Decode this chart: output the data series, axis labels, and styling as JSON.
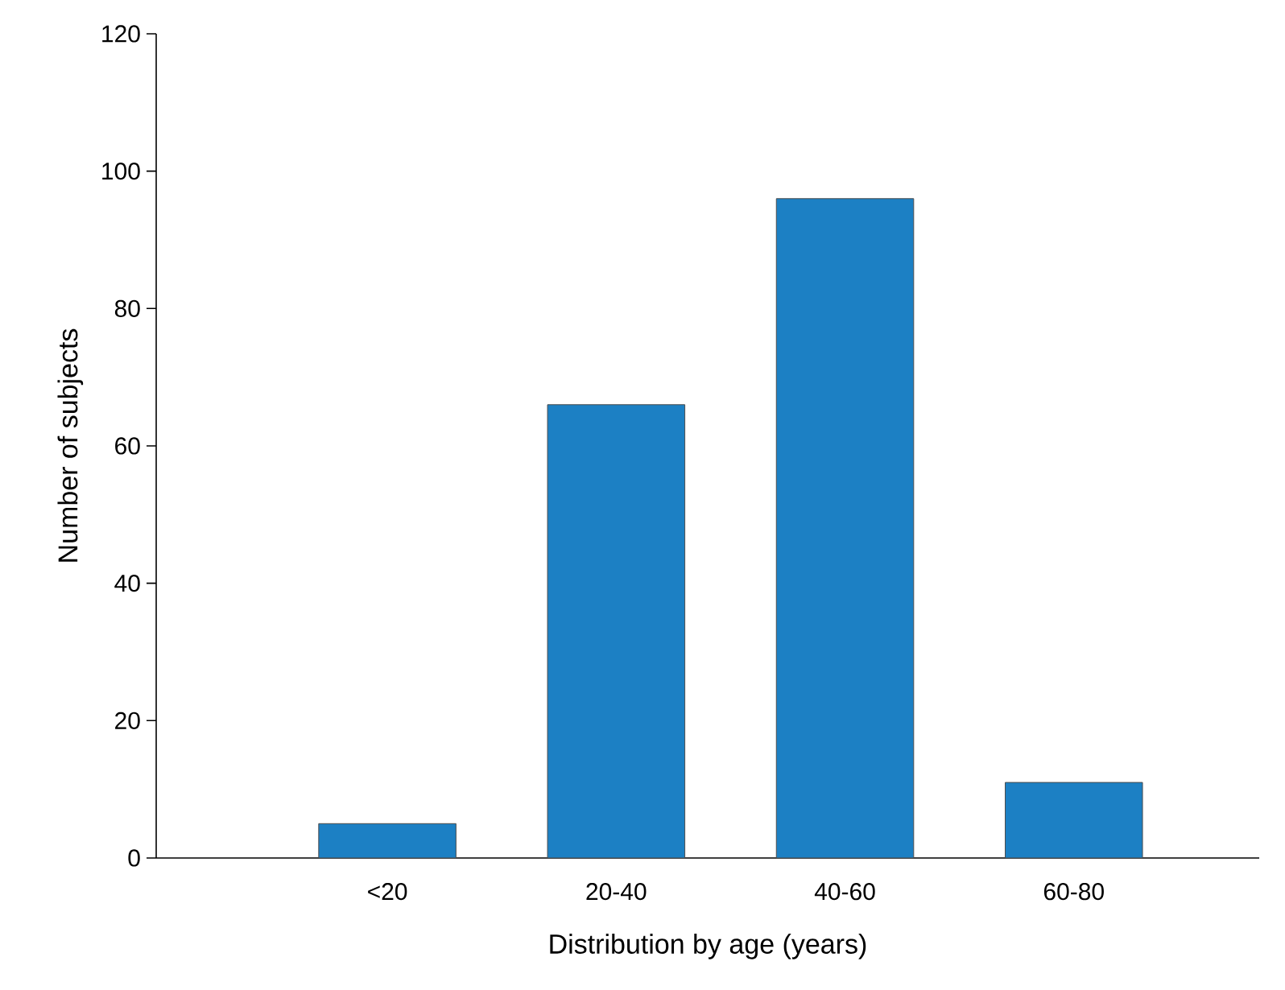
{
  "chart_data": {
    "type": "bar",
    "xlabel": "Distribution by age (years)",
    "ylabel": "Number of subjects",
    "categories": [
      "<20",
      "20-40",
      "40-60",
      "60-80"
    ],
    "values": [
      5,
      66,
      96,
      11
    ],
    "color": "#1c80c4",
    "ylim": [
      0,
      120
    ],
    "yticks": [
      0,
      20,
      40,
      60,
      80,
      100,
      120
    ]
  }
}
